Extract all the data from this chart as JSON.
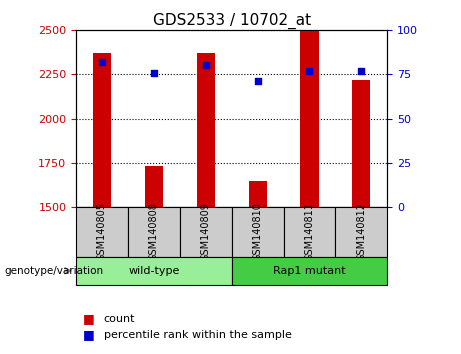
{
  "title": "GDS2533 / 10702_at",
  "samples": [
    "GSM140805",
    "GSM140808",
    "GSM140809",
    "GSM140810",
    "GSM140811",
    "GSM140812"
  ],
  "counts": [
    2370,
    1730,
    2370,
    1650,
    2500,
    2220
  ],
  "percentile_ranks": [
    82,
    76,
    80,
    71,
    77,
    77
  ],
  "ylim_left": [
    1500,
    2500
  ],
  "ylim_right": [
    0,
    100
  ],
  "yticks_left": [
    1500,
    1750,
    2000,
    2250,
    2500
  ],
  "yticks_right": [
    0,
    25,
    50,
    75,
    100
  ],
  "bar_color": "#cc0000",
  "point_color": "#0000cc",
  "bar_width": 0.35,
  "groups": [
    {
      "label": "wild-type",
      "indices": [
        0,
        1,
        2
      ],
      "color": "#99ee99"
    },
    {
      "label": "Rap1 mutant",
      "indices": [
        3,
        4,
        5
      ],
      "color": "#44cc44"
    }
  ],
  "group_label": "genotype/variation",
  "legend_count_label": "count",
  "legend_pct_label": "percentile rank within the sample",
  "ytick_left_color": "#cc0000",
  "ytick_right_color": "#0000cc",
  "grid_color": "#000000",
  "grid_style": "dotted",
  "sample_box_color": "#cccccc",
  "title_fontsize": 11,
  "tick_fontsize": 8,
  "label_fontsize": 7,
  "group_fontsize": 8,
  "legend_fontsize": 8
}
